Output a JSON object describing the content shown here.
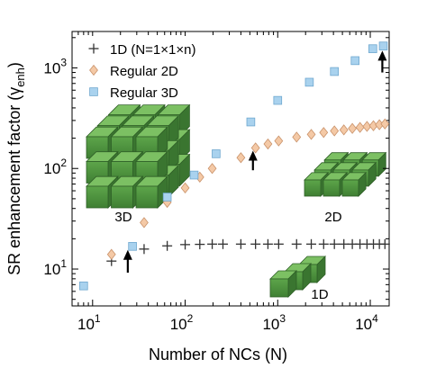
{
  "chart_data": {
    "type": "scatter",
    "xlabel": "Number of NCs (N)",
    "ylabel": "SR enhancement factor (γ",
    "ylabel_sub": "enh",
    "ylabel_close": ")",
    "xscale": "log",
    "yscale": "log",
    "xlim": [
      6,
      16000
    ],
    "ylim": [
      4.3,
      2300
    ],
    "xticks": [
      {
        "base": "10",
        "exp": "1",
        "value": 10
      },
      {
        "base": "10",
        "exp": "2",
        "value": 100
      },
      {
        "base": "10",
        "exp": "3",
        "value": 1000
      },
      {
        "base": "10",
        "exp": "4",
        "value": 10000
      }
    ],
    "yticks": [
      {
        "base": "10",
        "exp": "1",
        "value": 10
      },
      {
        "base": "10",
        "exp": "2",
        "value": 100
      },
      {
        "base": "10",
        "exp": "3",
        "value": 1000
      }
    ],
    "grid": false,
    "legend_position": "top-left",
    "series": [
      {
        "name": "1D (N=1×1×n)",
        "marker": "plus",
        "color": "#333333",
        "x": [
          16,
          36,
          64,
          100,
          144,
          196,
          256,
          400,
          576,
          784,
          1024,
          1600,
          2304,
          3136,
          4096,
          5184,
          6400,
          7744,
          9216,
          10816,
          12544,
          14400
        ],
        "y": [
          12,
          15.8,
          17,
          17.5,
          17.6,
          17.7,
          17.7,
          17.7,
          17.7,
          17.7,
          17.7,
          17.7,
          17.7,
          17.7,
          17.7,
          17.7,
          17.7,
          17.7,
          17.7,
          17.7,
          17.7,
          17.7
        ]
      },
      {
        "name": "Regular 2D",
        "marker": "diamond",
        "color": "#f4c9a6",
        "x": [
          16,
          36,
          64,
          100,
          144,
          196,
          400,
          576,
          784,
          1024,
          1600,
          2304,
          3136,
          4096,
          5184,
          6400,
          7744,
          9216,
          10816,
          12544,
          14400
        ],
        "y": [
          14,
          29,
          46,
          64,
          82,
          100,
          128,
          160,
          175,
          188,
          205,
          218,
          228,
          236,
          242,
          250,
          256,
          262,
          266,
          272,
          277
        ]
      },
      {
        "name": "Regular 3D",
        "marker": "square",
        "color": "#a9d2ee",
        "x": [
          8,
          27,
          64,
          125,
          216,
          512,
          1000,
          2197,
          4096,
          6859,
          10648,
          13824
        ],
        "y": [
          6.8,
          16.8,
          52,
          86,
          140,
          290,
          475,
          720,
          920,
          1180,
          1550,
          1650
        ]
      }
    ],
    "annotations": [
      "3D",
      "2D",
      "1D"
    ]
  }
}
